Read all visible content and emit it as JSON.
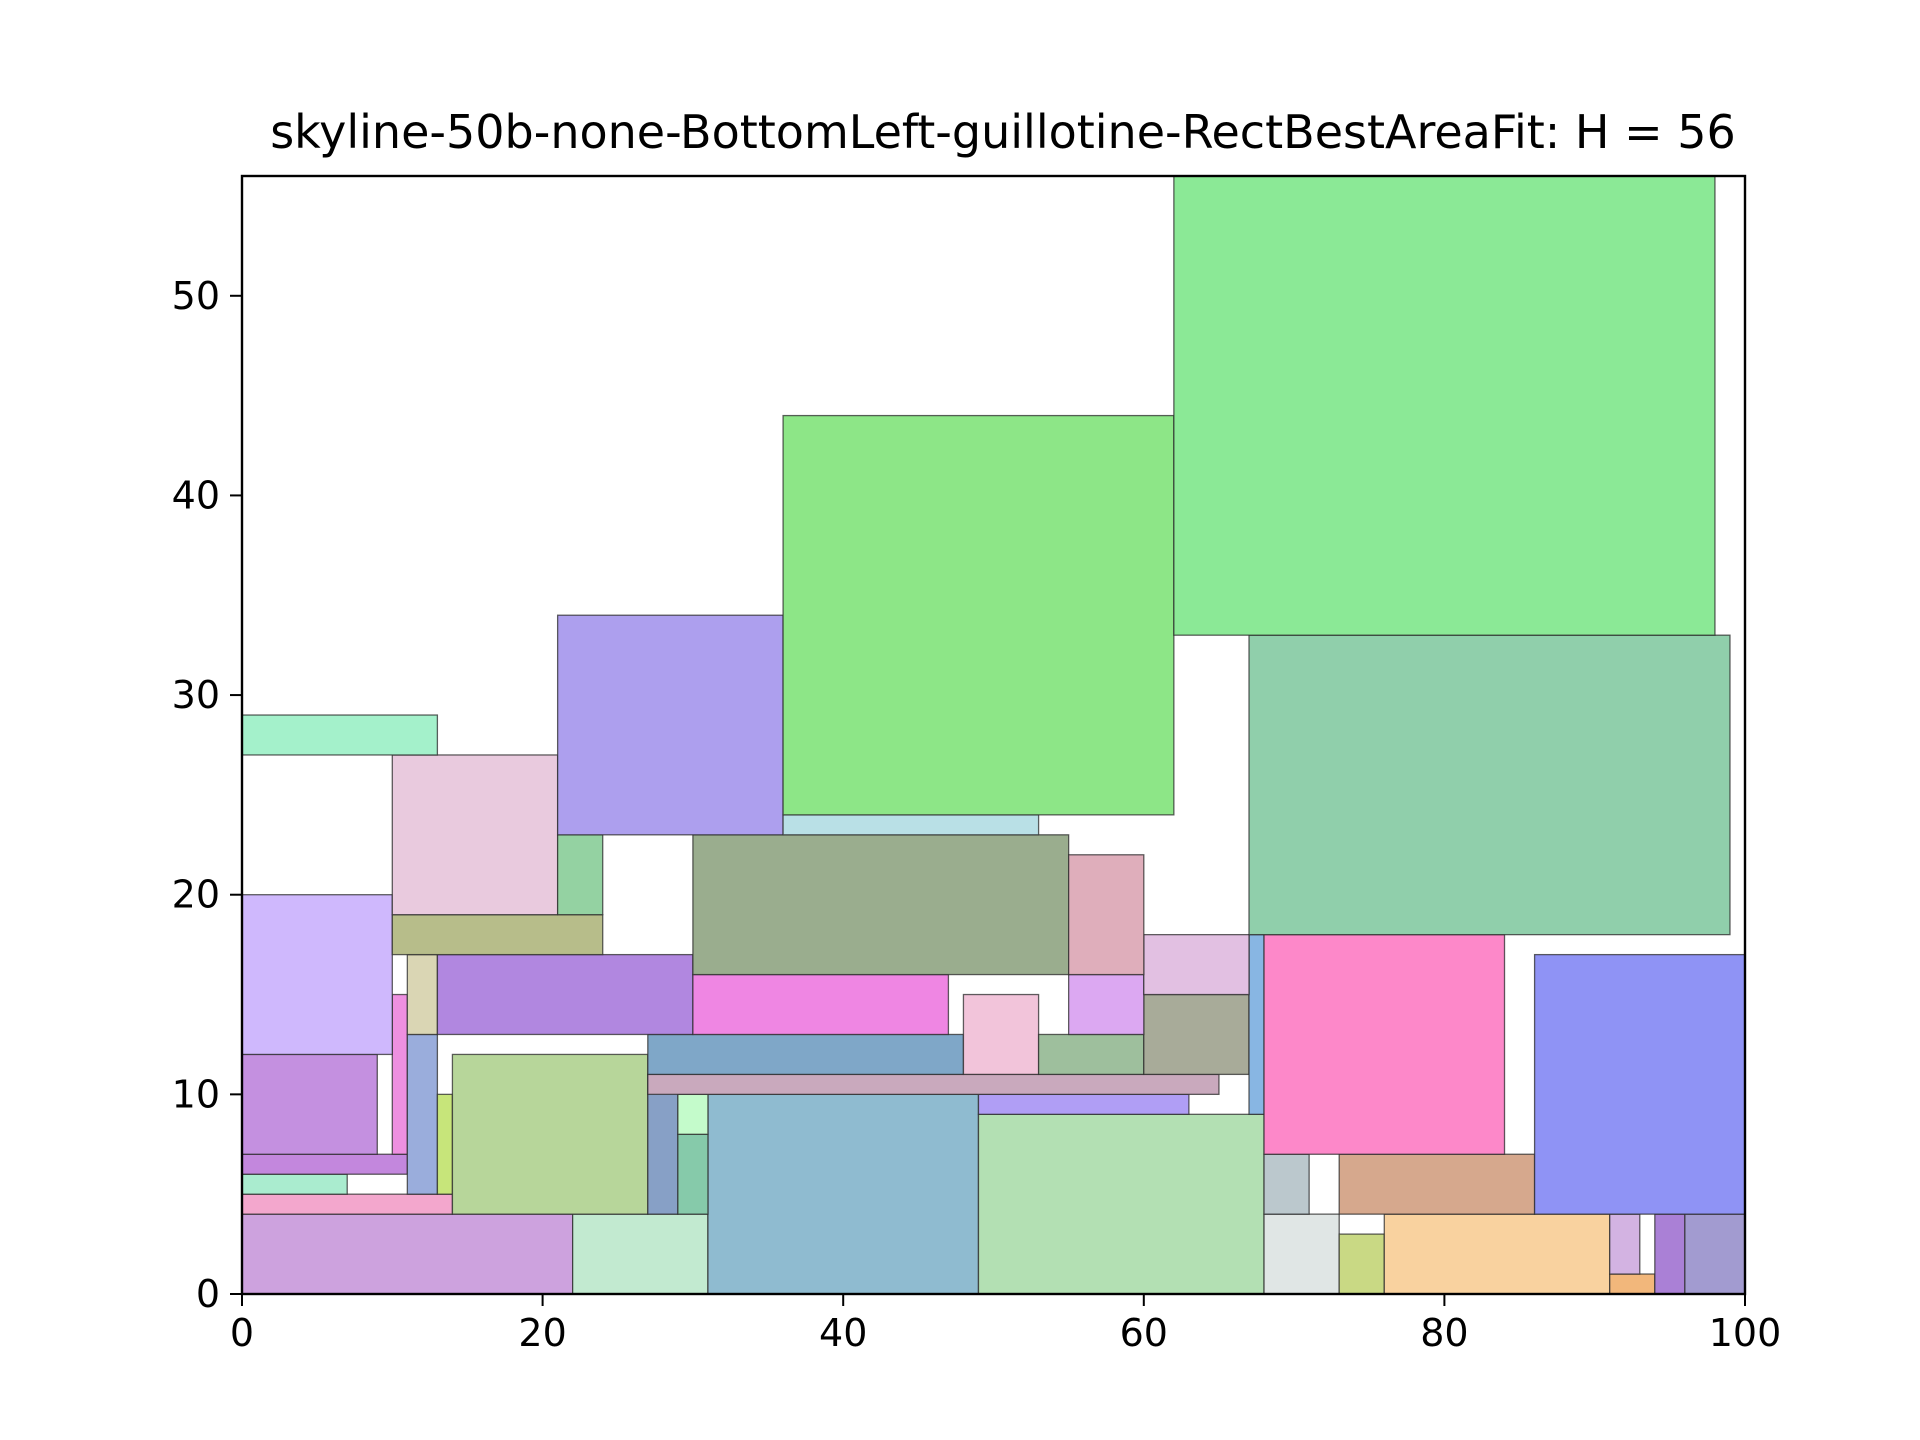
{
  "chart_data": {
    "type": "rectangle-packing",
    "title": "skyline-50b-none-BottomLeft-guillotine-RectBestAreaFit: H = 56",
    "xlabel": "",
    "ylabel": "",
    "xlim": [
      0,
      100
    ],
    "ylim": [
      0,
      56
    ],
    "xticks": [
      0,
      20,
      40,
      60,
      80,
      100
    ],
    "yticks": [
      0,
      10,
      20,
      30,
      40,
      50
    ],
    "grid": false,
    "legend": "none",
    "rects": [
      {
        "x": 0,
        "y": 0,
        "w": 22,
        "h": 4,
        "color": "#cda2de"
      },
      {
        "x": 22,
        "y": 0,
        "w": 9,
        "h": 4,
        "color": "#c2ead0"
      },
      {
        "x": 31,
        "y": 0,
        "w": 18,
        "h": 10,
        "color": "#8fbbd0"
      },
      {
        "x": 49,
        "y": 0,
        "w": 19,
        "h": 9,
        "color": "#b3e0b3"
      },
      {
        "x": 68,
        "y": 0,
        "w": 5,
        "h": 4,
        "color": "#e0e6e5"
      },
      {
        "x": 73,
        "y": 0,
        "w": 3,
        "h": 3,
        "color": "#c9d984"
      },
      {
        "x": 76,
        "y": 0,
        "w": 15,
        "h": 4,
        "color": "#f9d29f"
      },
      {
        "x": 91,
        "y": 0,
        "w": 3,
        "h": 1,
        "color": "#f2b77b"
      },
      {
        "x": 91,
        "y": 1,
        "w": 2,
        "h": 3,
        "color": "#d3b3e2"
      },
      {
        "x": 94,
        "y": 0,
        "w": 2,
        "h": 4,
        "color": "#aa80d6"
      },
      {
        "x": 96,
        "y": 0,
        "w": 4,
        "h": 4,
        "color": "#a29bd0"
      },
      {
        "x": 0,
        "y": 4,
        "w": 14,
        "h": 1,
        "color": "#f3a7cd"
      },
      {
        "x": 0,
        "y": 5,
        "w": 7,
        "h": 1,
        "color": "#aaeccf"
      },
      {
        "x": 0,
        "y": 6,
        "w": 11,
        "h": 1,
        "color": "#c387dd"
      },
      {
        "x": 0,
        "y": 7,
        "w": 9,
        "h": 5,
        "color": "#c490e0"
      },
      {
        "x": 10,
        "y": 7,
        "w": 1,
        "h": 8,
        "color": "#ee90e0"
      },
      {
        "x": 11,
        "y": 5,
        "w": 2,
        "h": 8,
        "color": "#9aaddc"
      },
      {
        "x": 13,
        "y": 5,
        "w": 1,
        "h": 5,
        "color": "#c7e57a"
      },
      {
        "x": 14,
        "y": 4,
        "w": 13,
        "h": 8,
        "color": "#b7d69a"
      },
      {
        "x": 27,
        "y": 4,
        "w": 2,
        "h": 7,
        "color": "#87a0c6"
      },
      {
        "x": 29,
        "y": 4,
        "w": 2,
        "h": 4,
        "color": "#86caaa"
      },
      {
        "x": 29,
        "y": 8,
        "w": 2,
        "h": 2,
        "color": "#c4fbcb"
      },
      {
        "x": 49,
        "y": 9,
        "w": 14,
        "h": 1,
        "color": "#b09ef5"
      },
      {
        "x": 27,
        "y": 10,
        "w": 38,
        "h": 1,
        "color": "#c9a9bd"
      },
      {
        "x": 27,
        "y": 11,
        "w": 21,
        "h": 2,
        "color": "#7fa7c8"
      },
      {
        "x": 48,
        "y": 11,
        "w": 5,
        "h": 4,
        "color": "#f2c4da"
      },
      {
        "x": 53,
        "y": 11,
        "w": 7,
        "h": 2,
        "color": "#9ebf9d"
      },
      {
        "x": 60,
        "y": 11,
        "w": 7,
        "h": 4,
        "color": "#a8ab99"
      },
      {
        "x": 67,
        "y": 9,
        "w": 1,
        "h": 9,
        "color": "#88b6e3"
      },
      {
        "x": 68,
        "y": 4,
        "w": 3,
        "h": 3,
        "color": "#bbc8cd"
      },
      {
        "x": 73,
        "y": 4,
        "w": 13,
        "h": 3,
        "color": "#d6a88d"
      },
      {
        "x": 68,
        "y": 7,
        "w": 16,
        "h": 11,
        "color": "#fd88c9"
      },
      {
        "x": 86,
        "y": 4,
        "w": 14,
        "h": 13,
        "color": "#8f93f5"
      },
      {
        "x": 0,
        "y": 12,
        "w": 10,
        "h": 8,
        "color": "#cfb8fd"
      },
      {
        "x": 11,
        "y": 13,
        "w": 2,
        "h": 4,
        "color": "#dad6b4"
      },
      {
        "x": 13,
        "y": 13,
        "w": 17,
        "h": 4,
        "color": "#b187e0"
      },
      {
        "x": 30,
        "y": 13,
        "w": 17,
        "h": 3,
        "color": "#ef86e3"
      },
      {
        "x": 55,
        "y": 13,
        "w": 5,
        "h": 3,
        "color": "#dca8f2"
      },
      {
        "x": 60,
        "y": 15,
        "w": 7,
        "h": 3,
        "color": "#e2c0e2"
      },
      {
        "x": 30,
        "y": 16,
        "w": 25,
        "h": 7,
        "color": "#9aad8e"
      },
      {
        "x": 55,
        "y": 16,
        "w": 5,
        "h": 6,
        "color": "#dfaebb"
      },
      {
        "x": 10,
        "y": 17,
        "w": 14,
        "h": 2,
        "color": "#b7bd8a"
      },
      {
        "x": 10,
        "y": 19,
        "w": 11,
        "h": 8,
        "color": "#e9cade"
      },
      {
        "x": 21,
        "y": 19,
        "w": 3,
        "h": 4,
        "color": "#94d2a2"
      },
      {
        "x": 21,
        "y": 23,
        "w": 15,
        "h": 11,
        "color": "#ad9fee"
      },
      {
        "x": 36,
        "y": 23,
        "w": 17,
        "h": 1,
        "color": "#b9e0e6"
      },
      {
        "x": 36,
        "y": 24,
        "w": 26,
        "h": 20,
        "color": "#8de687"
      },
      {
        "x": 0,
        "y": 27,
        "w": 13,
        "h": 2,
        "color": "#a4f1cb"
      },
      {
        "x": 67,
        "y": 18,
        "w": 32,
        "h": 15,
        "color": "#90cfab"
      },
      {
        "x": 62,
        "y": 33,
        "w": 36,
        "h": 23,
        "color": "#8be996"
      }
    ]
  }
}
